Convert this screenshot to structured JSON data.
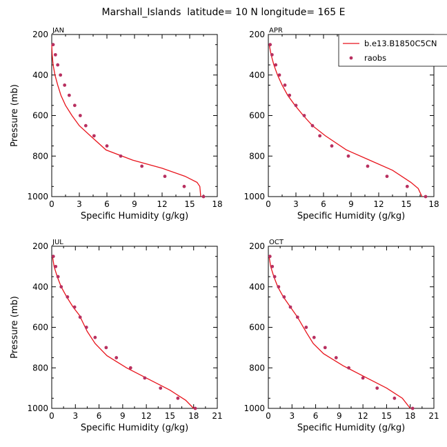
{
  "title": "Marshall_Islands  latitude= 10 N longitude= 165 E",
  "legend": {
    "model_label": "b.e13.B1850C5CN",
    "obs_label": "raobs"
  },
  "colors": {
    "model": "#e8121a",
    "obs": "#b83060"
  },
  "chart_data": [
    {
      "type": "line",
      "panel": "JAN",
      "xlabel": "Specific Humidity (g/kg)",
      "ylabel": "Pressure (mb)",
      "xlim": [
        0,
        18
      ],
      "ylim": [
        1000,
        200
      ],
      "y_reversed": true,
      "xticks": [
        0,
        3,
        6,
        9,
        12,
        15,
        18
      ],
      "yticks": [
        200,
        400,
        600,
        800,
        1000
      ],
      "series": [
        {
          "name": "b.e13.B1850C5CN",
          "style": "line",
          "x": [
            0.0,
            0.05,
            0.15,
            0.35,
            0.65,
            1.0,
            1.5,
            2.2,
            3.0,
            4.2,
            5.9,
            8.8,
            12.0,
            14.5,
            15.8,
            16.1,
            16.2
          ],
          "y": [
            250,
            300,
            350,
            400,
            450,
            500,
            550,
            600,
            650,
            700,
            770,
            820,
            860,
            900,
            930,
            950,
            1000
          ]
        },
        {
          "name": "raobs",
          "style": "markers",
          "x": [
            0.15,
            0.4,
            0.65,
            0.95,
            1.4,
            1.9,
            2.5,
            3.1,
            3.7,
            4.6,
            6.0,
            7.5,
            9.8,
            12.3,
            14.4,
            16.5
          ],
          "y": [
            250,
            300,
            350,
            400,
            450,
            500,
            550,
            600,
            650,
            700,
            750,
            800,
            850,
            900,
            950,
            1000
          ]
        }
      ]
    },
    {
      "type": "line",
      "panel": "APR",
      "xlabel": "Specific Humidity (g/kg)",
      "ylabel": "Pressure (mb)",
      "xlim": [
        0,
        18
      ],
      "ylim": [
        1000,
        200
      ],
      "y_reversed": true,
      "xticks": [
        0,
        3,
        6,
        9,
        12,
        15,
        18
      ],
      "yticks": [
        200,
        400,
        600,
        800,
        1000
      ],
      "series": [
        {
          "name": "b.e13.B1850C5CN",
          "style": "line",
          "x": [
            0.1,
            0.3,
            0.6,
            1.0,
            1.5,
            2.1,
            2.9,
            3.8,
            4.8,
            6.2,
            8.5,
            11.0,
            13.5,
            15.5,
            16.3,
            16.7
          ],
          "y": [
            250,
            300,
            350,
            400,
            450,
            500,
            550,
            600,
            650,
            700,
            770,
            820,
            870,
            930,
            960,
            1000
          ]
        },
        {
          "name": "raobs",
          "style": "markers",
          "x": [
            0.2,
            0.4,
            0.8,
            1.2,
            1.8,
            2.3,
            3.0,
            3.9,
            4.8,
            5.6,
            6.9,
            8.7,
            10.8,
            12.9,
            15.1,
            17.1
          ],
          "y": [
            250,
            300,
            350,
            400,
            450,
            500,
            550,
            600,
            650,
            700,
            750,
            800,
            850,
            900,
            950,
            1000
          ]
        }
      ]
    },
    {
      "type": "line",
      "panel": "JUL",
      "xlabel": "Specific Humidity (g/kg)",
      "ylabel": "Pressure (mb)",
      "xlim": [
        0,
        21
      ],
      "ylim": [
        1000,
        200
      ],
      "y_reversed": true,
      "xticks": [
        0,
        3,
        6,
        9,
        12,
        15,
        18,
        21
      ],
      "yticks": [
        200,
        400,
        600,
        800,
        1000
      ],
      "series": [
        {
          "name": "b.e13.B1850C5CN",
          "style": "line",
          "x": [
            0.1,
            0.3,
            0.7,
            1.2,
            1.9,
            2.7,
            3.5,
            4.0,
            4.5,
            5.5,
            7.0,
            9.5,
            12.5,
            15.0,
            17.0,
            18.0
          ],
          "y": [
            250,
            300,
            350,
            400,
            450,
            500,
            540,
            580,
            620,
            680,
            740,
            800,
            860,
            910,
            960,
            1000
          ]
        },
        {
          "name": "raobs",
          "style": "markers",
          "x": [
            0.2,
            0.5,
            0.8,
            1.2,
            2.0,
            2.9,
            3.6,
            4.4,
            5.5,
            6.9,
            8.2,
            10.0,
            11.8,
            13.8,
            16.0,
            18.2
          ],
          "y": [
            250,
            300,
            350,
            400,
            450,
            500,
            550,
            600,
            650,
            700,
            750,
            800,
            850,
            900,
            950,
            1000
          ]
        }
      ]
    },
    {
      "type": "line",
      "panel": "OCT",
      "xlabel": "Specific Humidity (g/kg)",
      "ylabel": "Pressure (mb)",
      "xlim": [
        0,
        21
      ],
      "ylim": [
        1000,
        200
      ],
      "y_reversed": true,
      "xticks": [
        0,
        3,
        6,
        9,
        12,
        15,
        18,
        21
      ],
      "yticks": [
        200,
        400,
        600,
        800,
        1000
      ],
      "series": [
        {
          "name": "b.e13.B1850C5CN",
          "style": "line",
          "x": [
            0.1,
            0.3,
            0.7,
            1.2,
            1.9,
            2.8,
            3.7,
            4.3,
            4.9,
            5.7,
            7.0,
            9.5,
            12.5,
            15.0,
            17.0,
            18.0
          ],
          "y": [
            250,
            300,
            350,
            400,
            450,
            500,
            550,
            590,
            630,
            680,
            730,
            790,
            850,
            900,
            950,
            1000
          ]
        },
        {
          "name": "raobs",
          "style": "markers",
          "x": [
            0.2,
            0.5,
            0.8,
            1.3,
            2.0,
            2.8,
            3.7,
            4.8,
            5.8,
            7.2,
            8.6,
            10.2,
            12.0,
            13.8,
            16.0,
            18.3
          ],
          "y": [
            250,
            300,
            350,
            400,
            450,
            500,
            550,
            600,
            650,
            700,
            750,
            800,
            850,
            900,
            950,
            1000
          ]
        }
      ]
    }
  ]
}
